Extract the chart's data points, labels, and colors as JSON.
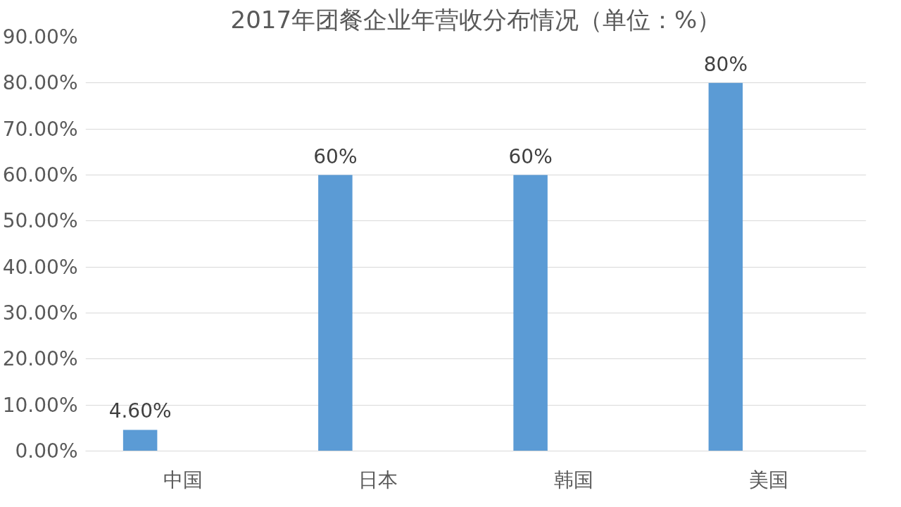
{
  "chart_data": {
    "type": "bar",
    "title": "2017年团餐企业年营收分布情况（单位：%）",
    "categories": [
      "中国",
      "日本",
      "韩国",
      "美国"
    ],
    "values": [
      4.6,
      60,
      60,
      80
    ],
    "value_labels": [
      "4.60%",
      "60%",
      "60%",
      "80%"
    ],
    "color": "#5b9bd5",
    "ylim": [
      0,
      90
    ],
    "yticks": [
      {
        "value": 0,
        "label": "0.00%"
      },
      {
        "value": 10,
        "label": "10.00%"
      },
      {
        "value": 20,
        "label": "20.00%"
      },
      {
        "value": 30,
        "label": "30.00%"
      },
      {
        "value": 40,
        "label": "40.00%"
      },
      {
        "value": 50,
        "label": "50.00%"
      },
      {
        "value": 60,
        "label": "60.00%"
      },
      {
        "value": 70,
        "label": "70.00%"
      },
      {
        "value": 80,
        "label": "80.00%"
      },
      {
        "value": 90,
        "label": "90.00%"
      }
    ],
    "grid": "y"
  }
}
